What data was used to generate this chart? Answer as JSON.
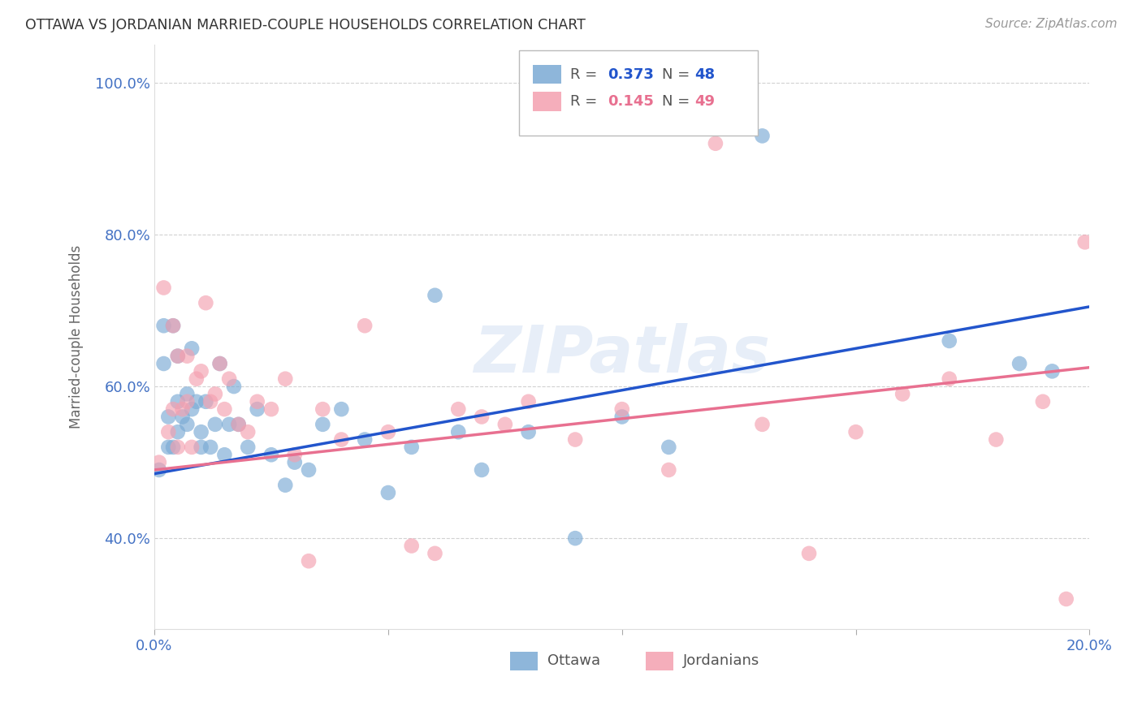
{
  "title": "OTTAWA VS JORDANIAN MARRIED-COUPLE HOUSEHOLDS CORRELATION CHART",
  "source": "Source: ZipAtlas.com",
  "ylabel_label": "Married-couple Households",
  "xlim": [
    0.0,
    0.2
  ],
  "ylim": [
    0.28,
    1.05
  ],
  "xticks": [
    0.0,
    0.05,
    0.1,
    0.15,
    0.2
  ],
  "xtick_labels": [
    "0.0%",
    "",
    "",
    "",
    "20.0%"
  ],
  "yticks": [
    0.4,
    0.6,
    0.8,
    1.0
  ],
  "ytick_labels": [
    "40.0%",
    "60.0%",
    "80.0%",
    "100.0%"
  ],
  "background_color": "#ffffff",
  "grid_color": "#cccccc",
  "title_color": "#333333",
  "axis_color": "#4472c4",
  "ottawa_color": "#7aaad4",
  "jordanian_color": "#f4a0b0",
  "ottawa_line_color": "#2255cc",
  "jordanian_line_color": "#e87090",
  "watermark": "ZIPatlas",
  "ottawa_x": [
    0.001,
    0.002,
    0.002,
    0.003,
    0.003,
    0.004,
    0.004,
    0.005,
    0.005,
    0.005,
    0.006,
    0.007,
    0.007,
    0.008,
    0.008,
    0.009,
    0.01,
    0.01,
    0.011,
    0.012,
    0.013,
    0.014,
    0.015,
    0.016,
    0.017,
    0.018,
    0.02,
    0.022,
    0.025,
    0.028,
    0.03,
    0.033,
    0.036,
    0.04,
    0.045,
    0.05,
    0.055,
    0.06,
    0.065,
    0.07,
    0.08,
    0.09,
    0.1,
    0.11,
    0.13,
    0.17,
    0.185,
    0.192
  ],
  "ottawa_y": [
    0.49,
    0.63,
    0.68,
    0.52,
    0.56,
    0.52,
    0.68,
    0.54,
    0.58,
    0.64,
    0.56,
    0.55,
    0.59,
    0.57,
    0.65,
    0.58,
    0.54,
    0.52,
    0.58,
    0.52,
    0.55,
    0.63,
    0.51,
    0.55,
    0.6,
    0.55,
    0.52,
    0.57,
    0.51,
    0.47,
    0.5,
    0.49,
    0.55,
    0.57,
    0.53,
    0.46,
    0.52,
    0.72,
    0.54,
    0.49,
    0.54,
    0.4,
    0.56,
    0.52,
    0.93,
    0.66,
    0.63,
    0.62
  ],
  "jordanian_x": [
    0.001,
    0.002,
    0.003,
    0.004,
    0.004,
    0.005,
    0.005,
    0.006,
    0.007,
    0.007,
    0.008,
    0.009,
    0.01,
    0.011,
    0.012,
    0.013,
    0.014,
    0.015,
    0.016,
    0.018,
    0.02,
    0.022,
    0.025,
    0.028,
    0.03,
    0.033,
    0.036,
    0.04,
    0.045,
    0.05,
    0.055,
    0.06,
    0.065,
    0.07,
    0.075,
    0.08,
    0.09,
    0.1,
    0.11,
    0.12,
    0.13,
    0.14,
    0.15,
    0.16,
    0.17,
    0.18,
    0.19,
    0.195,
    0.199
  ],
  "jordanian_y": [
    0.5,
    0.73,
    0.54,
    0.57,
    0.68,
    0.52,
    0.64,
    0.57,
    0.58,
    0.64,
    0.52,
    0.61,
    0.62,
    0.71,
    0.58,
    0.59,
    0.63,
    0.57,
    0.61,
    0.55,
    0.54,
    0.58,
    0.57,
    0.61,
    0.51,
    0.37,
    0.57,
    0.53,
    0.68,
    0.54,
    0.39,
    0.38,
    0.57,
    0.56,
    0.55,
    0.58,
    0.53,
    0.57,
    0.49,
    0.92,
    0.55,
    0.38,
    0.54,
    0.59,
    0.61,
    0.53,
    0.58,
    0.32,
    0.79
  ]
}
